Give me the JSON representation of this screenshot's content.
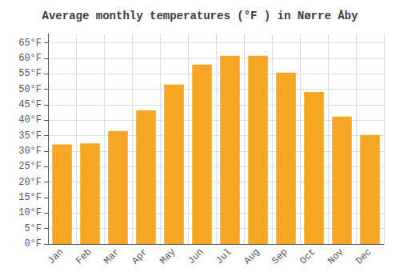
{
  "chart_data": {
    "type": "bar",
    "title": "Average monthly temperatures (°F ) in Nørre Åby",
    "categories": [
      "Jan",
      "Feb",
      "Mar",
      "Apr",
      "May",
      "Jun",
      "Jul",
      "Aug",
      "Sep",
      "Oct",
      "Nov",
      "Dec"
    ],
    "values": [
      32.2,
      32.5,
      36.5,
      43.2,
      51.5,
      58.0,
      60.8,
      60.8,
      55.4,
      49.1,
      41.2,
      35.2
    ],
    "color": "#F5A623",
    "ylim": [
      0,
      68
    ],
    "yticks": [
      {
        "value": 0,
        "label": "0°F"
      },
      {
        "value": 5,
        "label": "5°F"
      },
      {
        "value": 10,
        "label": "10°F"
      },
      {
        "value": 15,
        "label": "15°F"
      },
      {
        "value": 20,
        "label": "20°F"
      },
      {
        "value": 25,
        "label": "25°F"
      },
      {
        "value": 30,
        "label": "30°F"
      },
      {
        "value": 35,
        "label": "35°F"
      },
      {
        "value": 40,
        "label": "40°F"
      },
      {
        "value": 45,
        "label": "45°F"
      },
      {
        "value": 50,
        "label": "50°F"
      },
      {
        "value": 55,
        "label": "55°F"
      },
      {
        "value": 60,
        "label": "60°F"
      },
      {
        "value": 65,
        "label": "65°F"
      }
    ],
    "grid": true
  }
}
